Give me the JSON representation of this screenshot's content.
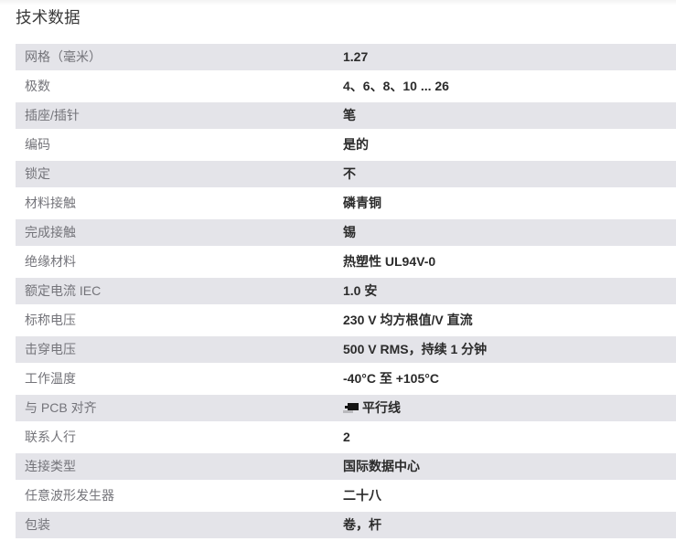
{
  "page": {
    "title": "技术数据"
  },
  "colors": {
    "stripe": "#e4e4e9",
    "label": "#74747a",
    "value": "#2b2b2b",
    "title": "#3a3a3a"
  },
  "table": {
    "rows": [
      {
        "label": "网格（毫米）",
        "value": "1.27"
      },
      {
        "label": "极数",
        "value": "4、6、8、10 ... 26"
      },
      {
        "label": "插座/插针",
        "value": "笔"
      },
      {
        "label": "编码",
        "value": "是的"
      },
      {
        "label": "锁定",
        "value": "不"
      },
      {
        "label": "材料接触",
        "value": "磷青铜"
      },
      {
        "label": "完成接触",
        "value": "锡"
      },
      {
        "label": "绝缘材料",
        "value": "热塑性 UL94V-0"
      },
      {
        "label": "额定电流 IEC",
        "value": "1.0 安"
      },
      {
        "label": "标称电压",
        "value": "230 V 均方根值/V 直流"
      },
      {
        "label": "击穿电压",
        "value": "500 V RMS，持续 1 分钟"
      },
      {
        "label": "工作温度",
        "value": "-40°C 至 +105°C"
      },
      {
        "label": "与 PCB 对齐",
        "value": "平行线",
        "icon": "pcb-parallel-icon"
      },
      {
        "label": "联系人行",
        "value": "2"
      },
      {
        "label": "连接类型",
        "value": "国际数据中心"
      },
      {
        "label": "任意波形发生器",
        "value": "二十八"
      },
      {
        "label": "包装",
        "value": "卷，杆"
      }
    ]
  }
}
